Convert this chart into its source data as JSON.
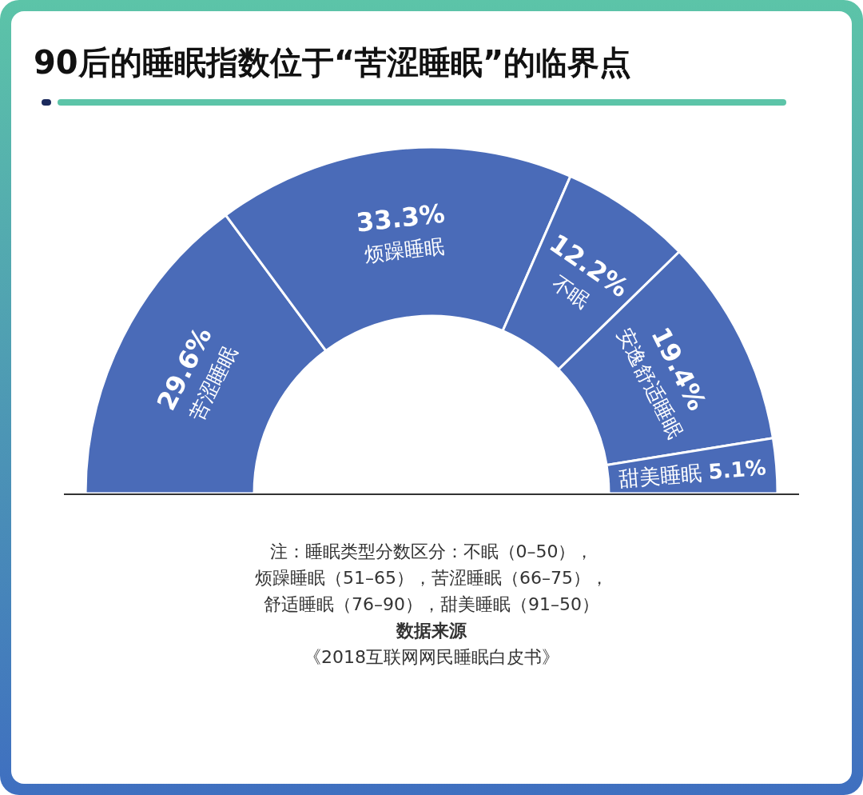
{
  "chart_data": {
    "type": "donut",
    "title": "90后的睡眠指数位于“苦涩睡眠”的临界点",
    "categories": [
      "苦涩睡眠",
      "烦躁睡眠",
      "不眠",
      "安逸舒适睡眠",
      "甜美睡眠"
    ],
    "values": [
      29.6,
      33.3,
      12.2,
      19.4,
      5.1
    ],
    "value_labels": [
      "29.6%",
      "33.3%",
      "12.2%",
      "19.4%",
      "5.1%"
    ],
    "colors": [
      "#4a6bb8",
      "#4a6bb8",
      "#4a6bb8",
      "#4a6bb8",
      "#4a6bb8"
    ],
    "annotations": [
      "注：睡眠类型分数区分：不眠（0–50），",
      "烦躁睡眠（51–65），苦涩睡眠（66–75），",
      "舒适睡眠（76–90），甜美睡眠（91–50）",
      "数据来源",
      "《2018互联网网民睡眠白皮书》"
    ]
  }
}
